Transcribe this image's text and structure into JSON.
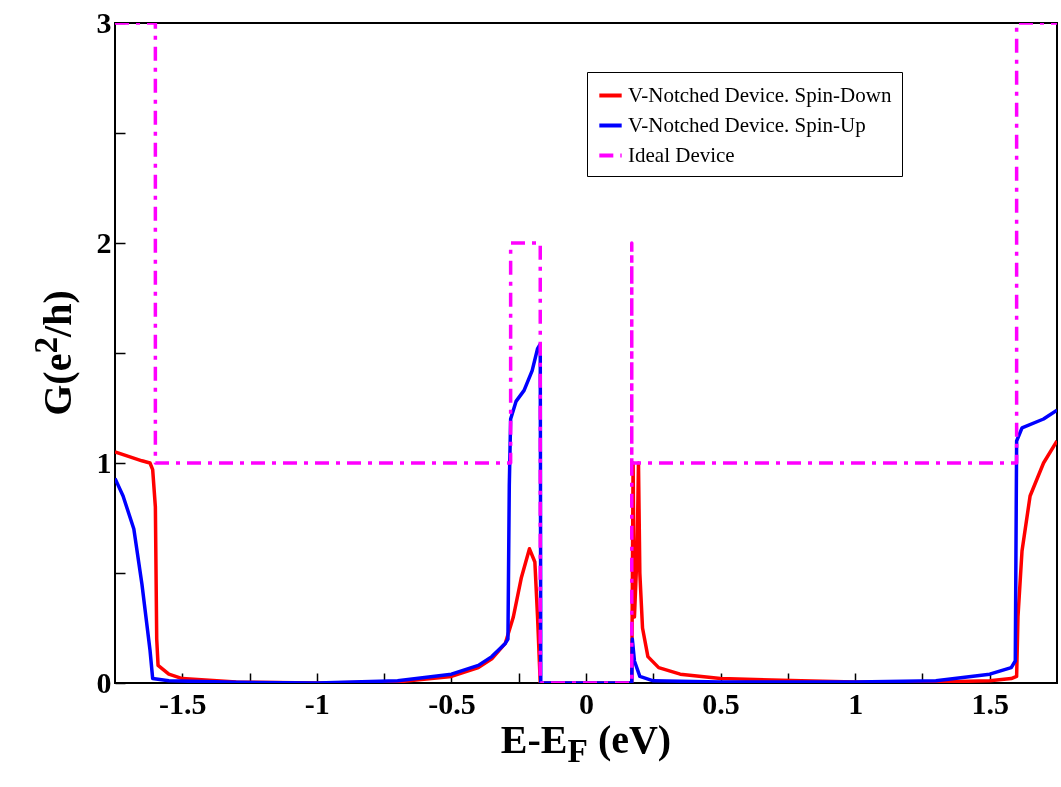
{
  "chart_data": {
    "type": "line",
    "xlabel": "E-E$_{F}$ (eV)",
    "ylabel": "G(e$^{2}$/h)",
    "xlim": [
      -1.75,
      1.75
    ],
    "ylim": [
      0,
      3
    ],
    "xticks": [
      -1.5,
      {
        "value": -1.25,
        "label": null
      },
      -1,
      {
        "value": -0.75,
        "label": null
      },
      -0.5,
      {
        "value": -0.25,
        "label": null
      },
      0,
      {
        "value": 0.25,
        "label": null
      },
      0.5,
      {
        "value": 0.75,
        "label": null
      },
      1,
      {
        "value": 1.25,
        "label": null
      },
      1.5
    ],
    "yticks": [
      0,
      {
        "value": 0.5,
        "label": null
      },
      1,
      {
        "value": 1.5,
        "label": null
      },
      2,
      {
        "value": 2.5,
        "label": null
      },
      3
    ],
    "legend": "top right",
    "grid": false,
    "series": [
      {
        "name": "V-Notched Device. Spin-Down",
        "color": "#ff0000",
        "line_style": "solid",
        "x": [
          -1.75,
          -1.7,
          -1.65,
          -1.62,
          -1.61,
          -1.6,
          -1.595,
          -1.59,
          -1.55,
          -1.5,
          -1.3,
          -1.0,
          -0.7,
          -0.5,
          -0.4,
          -0.35,
          -0.3,
          -0.27,
          -0.24,
          -0.21,
          -0.19,
          -0.18,
          -0.17,
          0.17,
          0.175,
          0.18,
          0.19,
          0.195,
          0.2,
          0.21,
          0.23,
          0.27,
          0.35,
          0.5,
          0.8,
          1.0,
          1.3,
          1.5,
          1.58,
          1.6,
          1.605,
          1.62,
          1.65,
          1.7,
          1.75
        ],
        "values": [
          1.05,
          1.03,
          1.01,
          1.0,
          0.97,
          0.8,
          0.2,
          0.08,
          0.04,
          0.02,
          0.005,
          0,
          0.005,
          0.03,
          0.07,
          0.11,
          0.18,
          0.3,
          0.48,
          0.61,
          0.55,
          0.3,
          0,
          0,
          1.0,
          0.3,
          0.6,
          1.0,
          0.5,
          0.25,
          0.12,
          0.07,
          0.04,
          0.02,
          0.01,
          0.005,
          0.005,
          0.01,
          0.02,
          0.03,
          0.3,
          0.6,
          0.85,
          1.0,
          1.1
        ]
      },
      {
        "name": "V-Notched Device. Spin-Up",
        "color": "#0000ff",
        "line_style": "solid",
        "x": [
          -1.75,
          -1.72,
          -1.68,
          -1.65,
          -1.62,
          -1.61,
          -1.55,
          -1.3,
          -1.0,
          -0.7,
          -0.5,
          -0.4,
          -0.35,
          -0.3,
          -0.29,
          -0.285,
          -0.28,
          -0.26,
          -0.23,
          -0.2,
          -0.18,
          -0.17,
          -0.168,
          0.17,
          0.172,
          0.18,
          0.2,
          0.25,
          0.5,
          1.0,
          1.3,
          1.5,
          1.58,
          1.595,
          1.6,
          1.62,
          1.7,
          1.75
        ],
        "values": [
          0.93,
          0.85,
          0.7,
          0.45,
          0.15,
          0.02,
          0.01,
          0.003,
          0,
          0.01,
          0.04,
          0.08,
          0.12,
          0.18,
          0.2,
          0.9,
          1.2,
          1.28,
          1.33,
          1.42,
          1.52,
          1.54,
          0,
          0,
          0.2,
          0.1,
          0.03,
          0.01,
          0.005,
          0.005,
          0.01,
          0.04,
          0.07,
          0.1,
          1.1,
          1.16,
          1.2,
          1.24
        ]
      },
      {
        "name": "Ideal Device",
        "color": "#ff00ff",
        "line_style": "dashdot",
        "x": [
          -1.75,
          -1.6,
          -1.6,
          -0.28,
          -0.28,
          -0.17,
          -0.17,
          0.17,
          0.17,
          0.17,
          1.6,
          1.6,
          1.75
        ],
        "values": [
          3,
          3,
          1,
          1,
          2,
          2,
          0,
          0,
          2,
          1,
          1,
          3,
          3
        ]
      }
    ]
  }
}
